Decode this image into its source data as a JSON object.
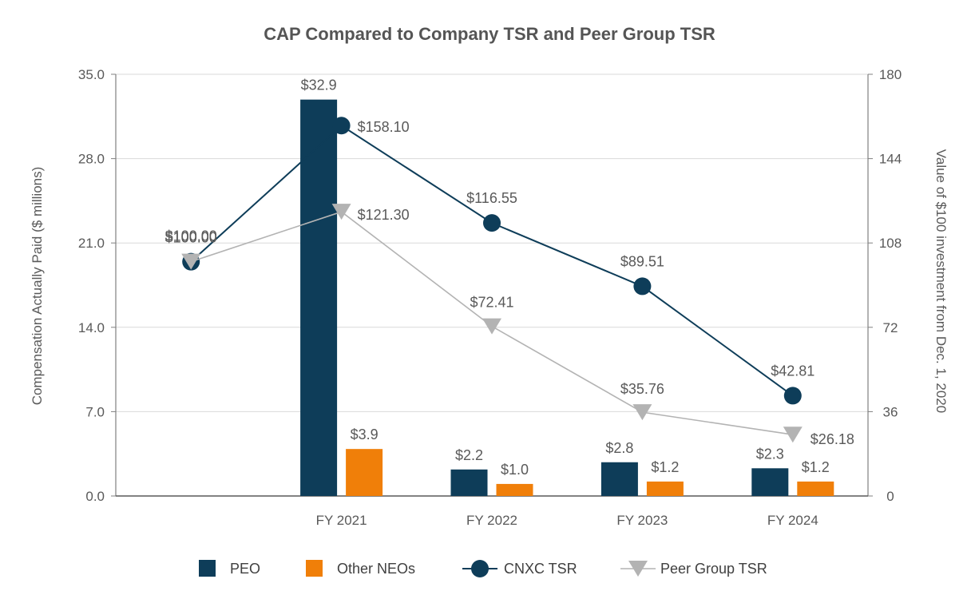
{
  "chart_data": {
    "type": "bar",
    "title": "CAP Compared to Company TSR and Peer Group TSR",
    "categories": [
      "",
      "FY 2021",
      "FY 2022",
      "FY 2023",
      "FY 2024"
    ],
    "ylabel": "Compensation Actually Paid ($ millions)",
    "y2label": "Value of $100 investment from Dec. 1, 2020",
    "ylim": [
      0,
      35
    ],
    "y2lim": [
      0,
      180
    ],
    "yticks": [
      "0.0",
      "7.0",
      "14.0",
      "21.0",
      "28.0",
      "35.0"
    ],
    "y2ticks": [
      "0",
      "36",
      "72",
      "108",
      "144",
      "180"
    ],
    "grid": true,
    "legend_position": "bottom",
    "bar_series": [
      {
        "name": "PEO",
        "color": "#0e3d59",
        "values": [
          null,
          32.9,
          2.2,
          2.8,
          2.3
        ],
        "labels": [
          "",
          "$32.9",
          "$2.2",
          "$2.8",
          "$2.3"
        ]
      },
      {
        "name": "Other NEOs",
        "color": "#f07f09",
        "values": [
          null,
          3.9,
          1.0,
          1.2,
          1.2
        ],
        "labels": [
          "",
          "$3.9",
          "$1.0",
          "$1.2",
          "$1.2"
        ]
      }
    ],
    "line_series": [
      {
        "name": "CNXC TSR",
        "color": "#0e3d59",
        "marker": "circle",
        "axis": "right",
        "values": [
          100.0,
          158.1,
          116.55,
          89.51,
          42.81
        ],
        "labels": [
          "$100.00",
          "$158.10",
          "$116.55",
          "$89.51",
          "$42.81"
        ]
      },
      {
        "name": "Peer Group TSR",
        "color": "#b3b3b3",
        "marker": "triangle-down",
        "axis": "right",
        "values": [
          100.0,
          121.3,
          72.41,
          35.76,
          26.18
        ],
        "labels": [
          "$100.00",
          "$121.30",
          "$72.41",
          "$35.76",
          "$26.18"
        ]
      }
    ]
  }
}
